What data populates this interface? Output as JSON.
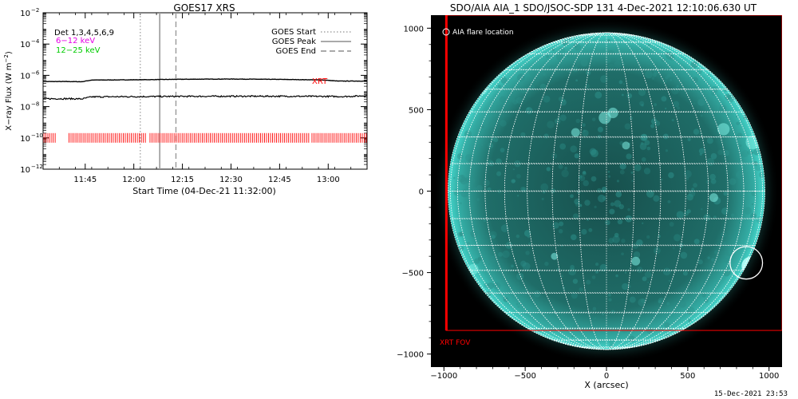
{
  "left_title": "GOES17 XRS",
  "right_title": "SDO/AIA AIA_1 SDO/JSOC-SDP 131  4-Dec-2021 12:10:06.630 UT",
  "footer_timestamp": "15-Dec-2021 23:53",
  "colors": {
    "long_flux": "#000000",
    "short_flux": "#000000",
    "xrt_marks": "#ff0000",
    "legend_6_12": "#e600e6",
    "legend_12_25": "#00cc00",
    "aia_disk": "#3fd7cc",
    "grid": "#ffffff",
    "fov": "#ff0000"
  },
  "left_legend": {
    "detectors": "Det 1,3,4,5,6,9",
    "band_6_12": "6−12 keV",
    "band_12_25": "12−25 keV"
  },
  "goes_legend": {
    "start": "GOES Start",
    "peak": "GOES Peak",
    "end": "GOES End"
  },
  "xrt_label": "XRT",
  "circle_label": "AIA flare location",
  "fov_label": "XRT FOV",
  "chart_data": [
    {
      "type": "line",
      "title": "GOES17 XRS",
      "xlabel": "Start Time (04-Dec-21 11:32:00)",
      "ylabel": "X-ray Flux (W m⁻²)",
      "ylabel_parts": {
        "text": "X−ray Flux (W m",
        "sup": "−2",
        "close": ")"
      },
      "yscale": "log",
      "xlim": [
        "11:32",
        "13:12"
      ],
      "ylim": [
        1e-12,
        0.01
      ],
      "x_ticks": [
        "11:45",
        "12:00",
        "12:15",
        "12:30",
        "12:45",
        "13:00"
      ],
      "y_ticks": [
        {
          "base": "10",
          "exp": "−12"
        },
        {
          "base": "10",
          "exp": "−10"
        },
        {
          "base": "10",
          "exp": "−8"
        },
        {
          "base": "10",
          "exp": "−6"
        },
        {
          "base": "10",
          "exp": "−4"
        },
        {
          "base": "10",
          "exp": "−2"
        }
      ],
      "series": [
        {
          "x": [
            "11:32",
            "11:40",
            "11:44",
            "11:47",
            "11:55",
            "12:05",
            "12:15",
            "12:30",
            "12:45",
            "12:58",
            "13:03",
            "13:12"
          ],
          "values": [
            4e-07,
            4e-07,
            3.9e-07,
            5e-07,
            5.1e-07,
            5.3e-07,
            5.6e-07,
            5.8e-07,
            5.5e-07,
            5.1e-07,
            4.3e-07,
            4.3e-07
          ]
        },
        {
          "x": [
            "11:32",
            "11:40",
            "11:44",
            "11:47",
            "11:55",
            "12:05",
            "12:15",
            "12:30",
            "12:45",
            "12:58",
            "13:05",
            "13:12"
          ],
          "values": [
            3.2e-08,
            3.2e-08,
            3.1e-08,
            4.2e-08,
            4.3e-08,
            4.4e-08,
            4.5e-08,
            4.6e-08,
            4.6e-08,
            4.5e-08,
            4.4e-08,
            5e-08
          ]
        }
      ],
      "xrt_observation_ranges": [
        [
          "11:32",
          "11:36"
        ],
        [
          "11:40",
          "12:04"
        ],
        [
          "12:05",
          "12:54"
        ],
        [
          "12:55",
          "13:12"
        ]
      ],
      "xrt_observation_level": 1e-10,
      "goes_events": {
        "start": "12:02",
        "peak": "12:08",
        "end": "12:13"
      }
    },
    {
      "type": "scatter",
      "title": "SDO/AIA AIA_1 SDO/JSOC-SDP 131  4-Dec-2021 12:10:06.630 UT",
      "xlabel": "X (arcsec)",
      "ylabel": "",
      "xlim": [
        -1080,
        1080
      ],
      "ylim": [
        -1080,
        1080
      ],
      "x_ticks": [
        "−1000",
        "−500",
        "0",
        "500",
        "1000"
      ],
      "y_ticks": [
        "1000",
        "500",
        "0",
        "−500",
        "−1000"
      ],
      "solar_radius_arcsec": 975,
      "grid_spacing_deg": 10,
      "flare_location": {
        "x": 860,
        "y": -440,
        "radius": 100
      },
      "xrt_fov": {
        "x_min": -985,
        "x_max": 1080,
        "y_min": -855,
        "y_max": 1080
      }
    }
  ]
}
